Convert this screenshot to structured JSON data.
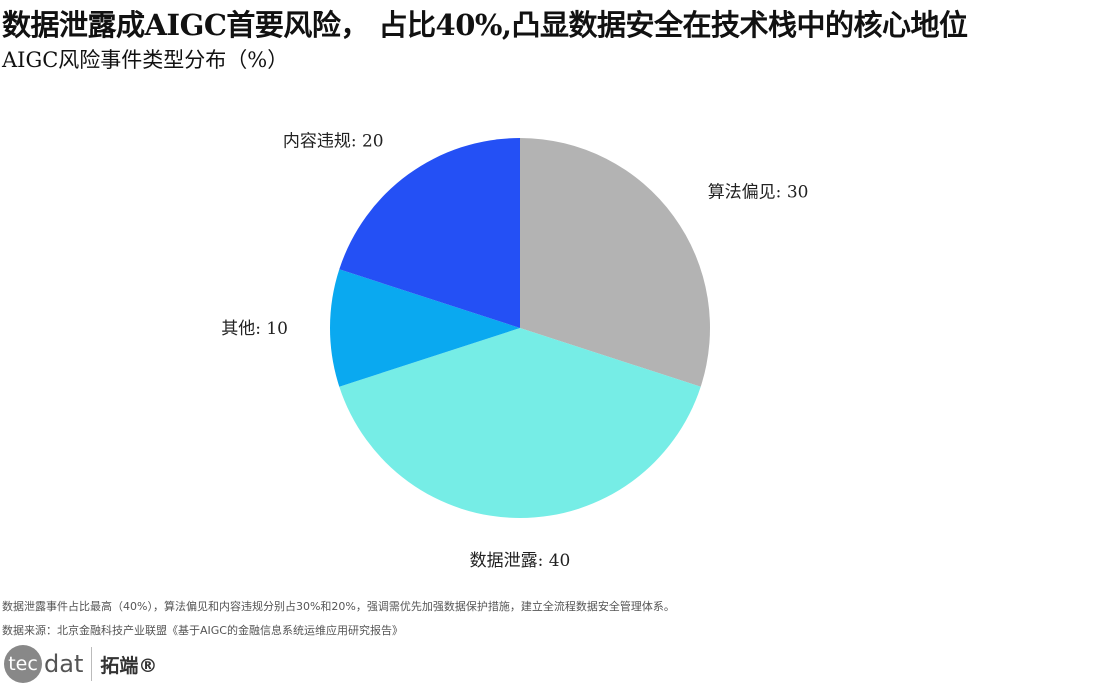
{
  "header": {
    "title": "数据泄露成AIGC首要风险， 占比40%,凸显数据安全在技术栈中的核心地位",
    "subtitle": "AIGC风险事件类型分布（%）"
  },
  "chart_data": {
    "type": "pie",
    "start": "top",
    "direction": "clockwise",
    "slices": [
      {
        "label": "算法偏见",
        "value": 30,
        "color": "#b3b3b3",
        "text": "算法偏见: 30"
      },
      {
        "label": "数据泄露",
        "value": 40,
        "color": "#76ede6",
        "text": "数据泄露: 40"
      },
      {
        "label": "其他",
        "value": 10,
        "color": "#0aa9f0",
        "text": "其他: 10"
      },
      {
        "label": "内容违规",
        "value": 20,
        "color": "#2450f5",
        "text": "内容违规: 20"
      }
    ]
  },
  "footer": {
    "note": "数据泄露事件占比最高（40%），算法偏见和内容违规分别占30%和20%，强调需优先加强数据保护措施，建立全流程数据安全管理体系。",
    "source": "数据来源：北京金融科技产业联盟《基于AIGC的金融信息系统运维应用研究报告》"
  },
  "logo": {
    "part1": "tec",
    "part2": "dat",
    "cn": "拓端®"
  }
}
